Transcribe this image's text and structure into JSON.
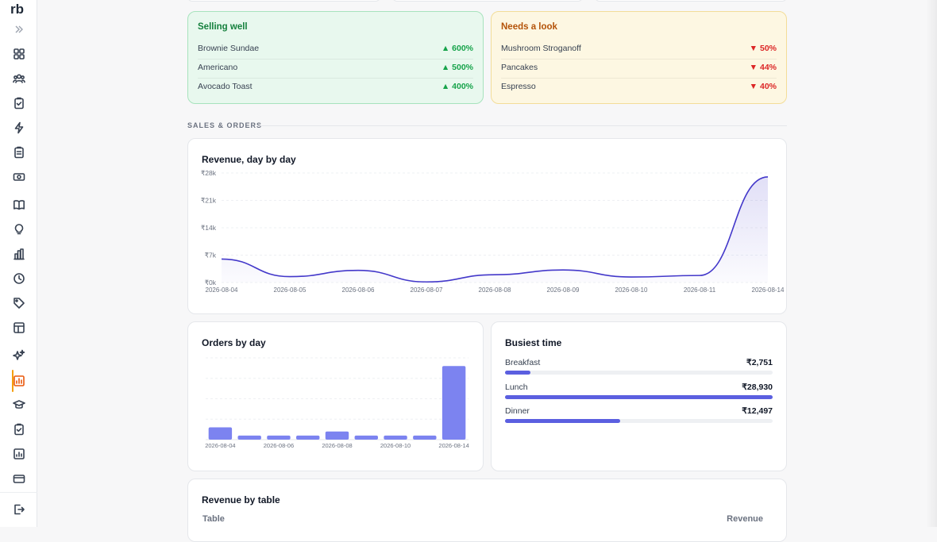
{
  "brand": {
    "logo_text": "rb"
  },
  "sidebar": {
    "items": [
      {
        "name": "dashboard-grid-icon",
        "active": false
      },
      {
        "name": "users-icon",
        "active": false
      },
      {
        "name": "clipboard-check-icon",
        "active": false
      },
      {
        "name": "lightning-icon",
        "active": false
      },
      {
        "name": "clipboard-list-icon",
        "active": false
      },
      {
        "name": "cash-icon",
        "active": false
      },
      {
        "name": "book-icon",
        "active": false
      },
      {
        "name": "bulb-icon",
        "active": false
      },
      {
        "name": "bar-building-icon",
        "active": false
      },
      {
        "name": "clock-icon",
        "active": false
      },
      {
        "name": "tag-icon",
        "active": false
      },
      {
        "name": "layout-icon",
        "active": false
      },
      {
        "name": "sparkles-icon",
        "active": false
      },
      {
        "name": "reports-icon",
        "active": true
      },
      {
        "name": "graduation-cap-icon",
        "active": false
      },
      {
        "name": "task-check-icon",
        "active": false
      },
      {
        "name": "chart-square-icon",
        "active": false
      },
      {
        "name": "wallet-icon",
        "active": false
      },
      {
        "name": "logout-icon",
        "active": false
      }
    ]
  },
  "highlights": {
    "selling_well": {
      "title": "Selling well",
      "items": [
        {
          "name": "Brownie Sundae",
          "change": "▲ 600%"
        },
        {
          "name": "Americano",
          "change": "▲ 500%"
        },
        {
          "name": "Avocado Toast",
          "change": "▲ 400%"
        }
      ]
    },
    "needs_look": {
      "title": "Needs a look",
      "items": [
        {
          "name": "Mushroom Stroganoff",
          "change": "▼ 50%"
        },
        {
          "name": "Pancakes",
          "change": "▼ 44%"
        },
        {
          "name": "Espresso",
          "change": "▼ 40%"
        }
      ]
    }
  },
  "section": {
    "label": "SALES & ORDERS"
  },
  "revenue_chart": {
    "title": "Revenue, day by day",
    "chart_data": {
      "type": "area",
      "x": [
        "2026-08-04",
        "2026-08-05",
        "2026-08-06",
        "2026-08-07",
        "2026-08-08",
        "2026-08-09",
        "2026-08-10",
        "2026-08-11",
        "2026-08-14"
      ],
      "values": [
        6000,
        1500,
        3100,
        150,
        2000,
        3200,
        1400,
        1800,
        27000
      ],
      "ylim": [
        0,
        28000
      ],
      "yticks": [
        "₹28k",
        "₹21k",
        "₹14k",
        "₹7k",
        "₹0k"
      ],
      "color": "#4338ca"
    }
  },
  "orders_chart": {
    "title": "Orders by day",
    "chart_data": {
      "type": "bar",
      "categories": [
        "2026-08-04",
        "2026-08-05",
        "2026-08-06",
        "2026-08-07",
        "2026-08-08",
        "2026-08-09",
        "2026-08-10",
        "2026-08-11",
        "2026-08-14"
      ],
      "values": [
        3,
        1,
        1,
        1,
        2,
        1,
        1,
        1,
        18
      ],
      "xtick_labels": [
        "2026-08-04",
        "2026-08-06",
        "2026-08-08",
        "2026-08-10",
        "2026-08-14"
      ],
      "ylim": [
        0,
        20
      ],
      "color": "#7c83f0"
    }
  },
  "busiest": {
    "title": "Busiest time",
    "items": [
      {
        "label": "Breakfast",
        "value": "₹2,751",
        "fraction": 0.095
      },
      {
        "label": "Lunch",
        "value": "₹28,930",
        "fraction": 1.0
      },
      {
        "label": "Dinner",
        "value": "₹12,497",
        "fraction": 0.43
      }
    ],
    "bar_color": "#5b5fe0"
  },
  "revenue_by_table": {
    "title": "Revenue by table",
    "columns": [
      "Table",
      "Revenue"
    ]
  }
}
